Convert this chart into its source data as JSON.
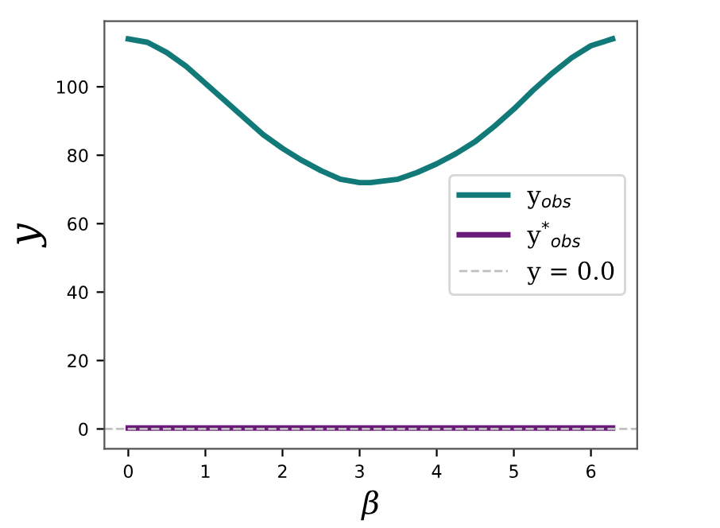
{
  "chart_data": {
    "type": "line",
    "xlabel": "β",
    "ylabel": "y",
    "x": [
      0,
      0.25,
      0.5,
      0.75,
      1,
      1.25,
      1.5,
      1.75,
      2,
      2.25,
      2.5,
      2.75,
      3,
      3.14,
      3.5,
      3.75,
      4,
      4.25,
      4.5,
      4.75,
      5,
      5.25,
      5.5,
      5.75,
      6,
      6.28
    ],
    "series": [
      {
        "name": "y$_{obs}$",
        "color": "#117a78",
        "values": [
          114,
          113,
          110,
          106,
          101,
          96,
          91,
          86,
          82,
          78.5,
          75.5,
          73,
          72,
          72,
          73,
          75,
          77.5,
          80.5,
          84,
          88.5,
          93.5,
          99,
          104,
          108.5,
          112,
          114
        ]
      },
      {
        "name": "y$^{*}$$_{obs}$",
        "color": "#6a1b78",
        "values": [
          0.3,
          0.3,
          0.3,
          0.3,
          0.3,
          0.3,
          0.3,
          0.3,
          0.3,
          0.3,
          0.3,
          0.3,
          0.3,
          0.3,
          0.3,
          0.3,
          0.3,
          0.3,
          0.3,
          0.3,
          0.3,
          0.3,
          0.3,
          0.3,
          0.3,
          0.3
        ]
      }
    ],
    "ref_lines": [
      {
        "axis": "y",
        "value": 0.0,
        "label": "y = 0.0",
        "color": "#c0c0c0",
        "line_style": "dashed"
      }
    ],
    "xlim": [
      -0.31,
      6.6
    ],
    "ylim": [
      -5.8,
      119.2
    ],
    "xticks": [
      0,
      1,
      2,
      3,
      4,
      5,
      6
    ],
    "yticks": [
      0,
      20,
      40,
      60,
      80,
      100
    ],
    "legend": "center right",
    "grid": false
  }
}
